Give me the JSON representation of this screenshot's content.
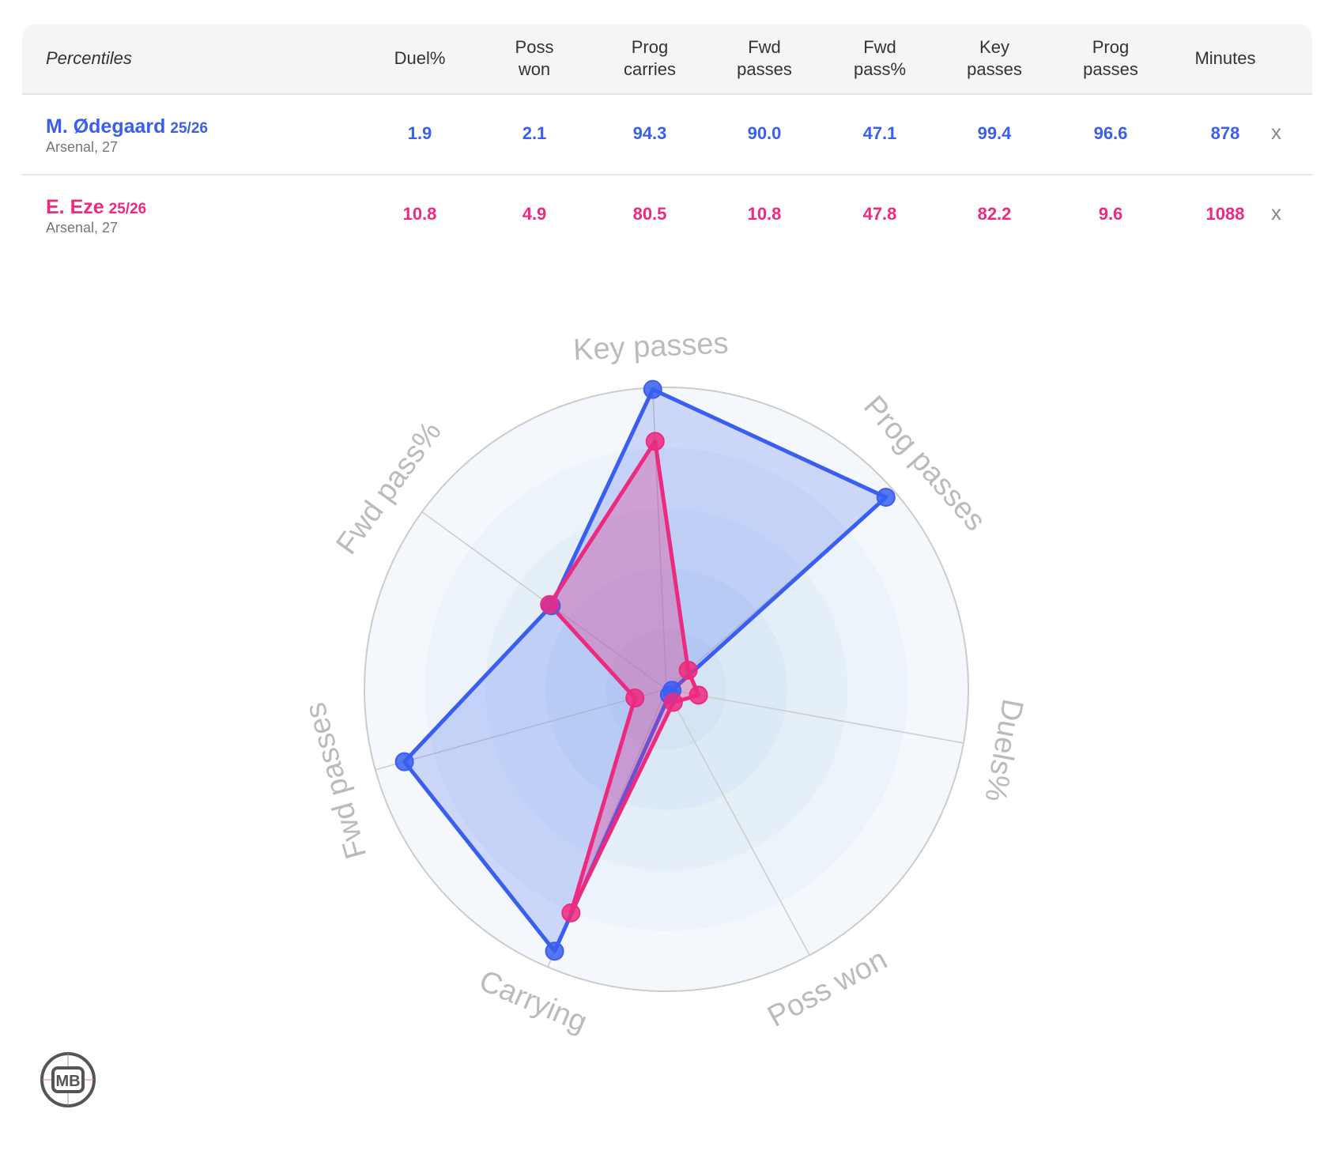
{
  "table": {
    "header_label": "Percentiles",
    "columns": [
      "Duel%",
      "Poss won",
      "Prog carries",
      "Fwd passes",
      "Fwd pass%",
      "Key passes",
      "Prog passes",
      "Minutes"
    ],
    "rows": [
      {
        "name": "M. Ødegaard",
        "season": "25/26",
        "team": "Arsenal, 27",
        "values": [
          "1.9",
          "2.1",
          "94.3",
          "90.0",
          "47.1",
          "99.4",
          "96.6",
          "878"
        ],
        "remove": "x",
        "color": "#3a5ff0"
      },
      {
        "name": "E. Eze",
        "season": "25/26",
        "team": "Arsenal, 27",
        "values": [
          "10.8",
          "4.9",
          "80.5",
          "10.8",
          "47.8",
          "82.2",
          "9.6",
          "1088"
        ],
        "remove": "x",
        "color": "#ec2a7f"
      }
    ]
  },
  "chart_data": {
    "type": "radar",
    "axes": [
      "Key passes",
      "Prog passes",
      "Duels%",
      "Poss won",
      "Carrying",
      "Fwd passes",
      "Fwd pass%"
    ],
    "range": [
      0,
      100
    ],
    "series": [
      {
        "name": "M. Ødegaard",
        "color": "#3a5ff0",
        "values": [
          99.4,
          96.6,
          1.9,
          2.1,
          94.3,
          90.0,
          47.1
        ]
      },
      {
        "name": "E. Eze",
        "color": "#ec2a7f",
        "values": [
          82.2,
          9.6,
          10.8,
          4.9,
          80.5,
          10.8,
          47.8
        ]
      }
    ]
  },
  "logo": {
    "text": "MB"
  }
}
